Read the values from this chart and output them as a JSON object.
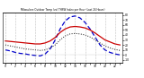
{
  "title": "Milwaukee Outdoor Temp (vs) THSW Index per Hour (Last 24 Hours)",
  "background_color": "#ffffff",
  "hours": [
    0,
    1,
    2,
    3,
    4,
    5,
    6,
    7,
    8,
    9,
    10,
    11,
    12,
    13,
    14,
    15,
    16,
    17,
    18,
    19,
    20,
    21,
    22,
    23
  ],
  "temp_red": [
    28,
    27,
    26,
    25,
    24,
    23,
    22,
    22,
    24,
    28,
    35,
    45,
    52,
    56,
    57,
    56,
    54,
    50,
    44,
    37,
    30,
    26,
    22,
    20
  ],
  "thsw_blue": [
    10,
    8,
    5,
    3,
    2,
    0,
    -1,
    -2,
    2,
    12,
    30,
    52,
    68,
    76,
    78,
    74,
    65,
    52,
    36,
    20,
    10,
    5,
    2,
    0
  ],
  "black_dot": [
    20,
    18,
    16,
    14,
    12,
    11,
    10,
    9,
    10,
    14,
    20,
    30,
    38,
    42,
    43,
    42,
    40,
    36,
    30,
    24,
    18,
    14,
    11,
    9
  ],
  "line_colors": [
    "#cc0000",
    "#0000cc",
    "#111111"
  ],
  "yticks_right": [
    -10,
    0,
    10,
    20,
    30,
    40,
    50,
    60,
    70,
    80
  ],
  "ytick_labels_right": [
    "-10",
    "0",
    "10",
    "20",
    "30",
    "40",
    "50",
    "60",
    "70",
    "80"
  ],
  "ylim": [
    -15,
    85
  ],
  "xlim": [
    -0.5,
    23.5
  ],
  "figsize": [
    1.6,
    0.87
  ],
  "dpi": 100,
  "grid_hours": [
    0,
    2,
    4,
    6,
    8,
    10,
    12,
    14,
    16,
    18,
    20,
    22
  ]
}
